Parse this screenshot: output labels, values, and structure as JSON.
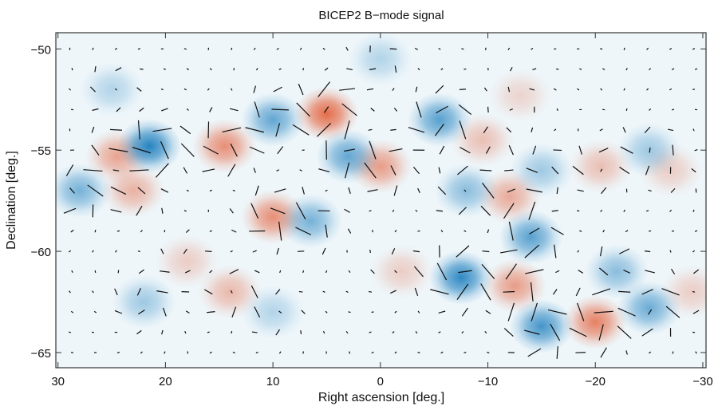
{
  "chart_data": {
    "type": "heatmap",
    "title": "BICEP2 B−mode signal",
    "xlabel": "Right ascension [deg.]",
    "ylabel": "Declination [deg.]",
    "xlim": [
      30.2,
      -30.3
    ],
    "ylim": [
      -65.75,
      -49.2
    ],
    "x_ticks": [
      30,
      20,
      10,
      0,
      -10,
      -20,
      -30
    ],
    "x_tick_labels": [
      "30",
      "20",
      "10",
      "0",
      "−10",
      "−20",
      "−30"
    ],
    "y_ticks": [
      -50,
      -55,
      -60,
      -65
    ],
    "y_tick_labels": [
      "−50",
      "−55",
      "−60",
      "−65"
    ],
    "grid": false,
    "overlay": "headless polarization vectors",
    "colors": {
      "positive": "#e4643f",
      "negative": "#1a7dbd",
      "background": "#eef6fa"
    },
    "features": [
      {
        "ra": 5,
        "dec": -53.2,
        "amp": 1.0
      },
      {
        "ra": 14.5,
        "dec": -54.8,
        "amp": 0.75
      },
      {
        "ra": 24.5,
        "dec": -55.3,
        "amp": 0.6
      },
      {
        "ra": 23,
        "dec": -57,
        "amp": 0.5
      },
      {
        "ra": 10,
        "dec": -58.3,
        "amp": 0.75
      },
      {
        "ra": 0,
        "dec": -55.8,
        "amp": 0.65
      },
      {
        "ra": -9.5,
        "dec": -54.5,
        "amp": 0.4
      },
      {
        "ra": -12,
        "dec": -57.3,
        "amp": 0.55
      },
      {
        "ra": -12.5,
        "dec": -61.7,
        "amp": 0.65
      },
      {
        "ra": -20,
        "dec": -63.5,
        "amp": 0.85
      },
      {
        "ra": -20.5,
        "dec": -55.8,
        "amp": 0.4
      },
      {
        "ra": 14,
        "dec": -62,
        "amp": 0.45
      },
      {
        "ra": -2,
        "dec": -61,
        "amp": 0.3
      },
      {
        "ra": -29,
        "dec": -62,
        "amp": 0.3
      },
      {
        "ra": -13,
        "dec": -52.3,
        "amp": 0.25
      },
      {
        "ra": -27,
        "dec": -56,
        "amp": 0.3
      },
      {
        "ra": 18,
        "dec": -60.5,
        "amp": 0.3
      },
      {
        "ra": 21.5,
        "dec": -54.8,
        "amp": -1.0
      },
      {
        "ra": 10,
        "dec": -53.5,
        "amp": -0.7
      },
      {
        "ra": 3,
        "dec": -55.3,
        "amp": -0.7
      },
      {
        "ra": -5.5,
        "dec": -53.5,
        "amp": -0.75
      },
      {
        "ra": -7.5,
        "dec": -61.3,
        "amp": -0.95
      },
      {
        "ra": -14,
        "dec": -59.3,
        "amp": -0.75
      },
      {
        "ra": -15,
        "dec": -63.7,
        "amp": -0.85
      },
      {
        "ra": -25,
        "dec": -62.8,
        "amp": -0.65
      },
      {
        "ra": 28,
        "dec": -57,
        "amp": -0.6
      },
      {
        "ra": 6.5,
        "dec": -58.5,
        "amp": -0.6
      },
      {
        "ra": -8,
        "dec": -57,
        "amp": -0.5
      },
      {
        "ra": -22,
        "dec": -61,
        "amp": -0.5
      },
      {
        "ra": -25,
        "dec": -55,
        "amp": -0.4
      },
      {
        "ra": 22,
        "dec": -62.5,
        "amp": -0.4
      },
      {
        "ra": 10,
        "dec": -63,
        "amp": -0.3
      },
      {
        "ra": 0,
        "dec": -50.5,
        "amp": -0.3
      },
      {
        "ra": -15,
        "dec": -56,
        "amp": -0.4
      },
      {
        "ra": 25,
        "dec": -52,
        "amp": -0.3
      }
    ]
  }
}
